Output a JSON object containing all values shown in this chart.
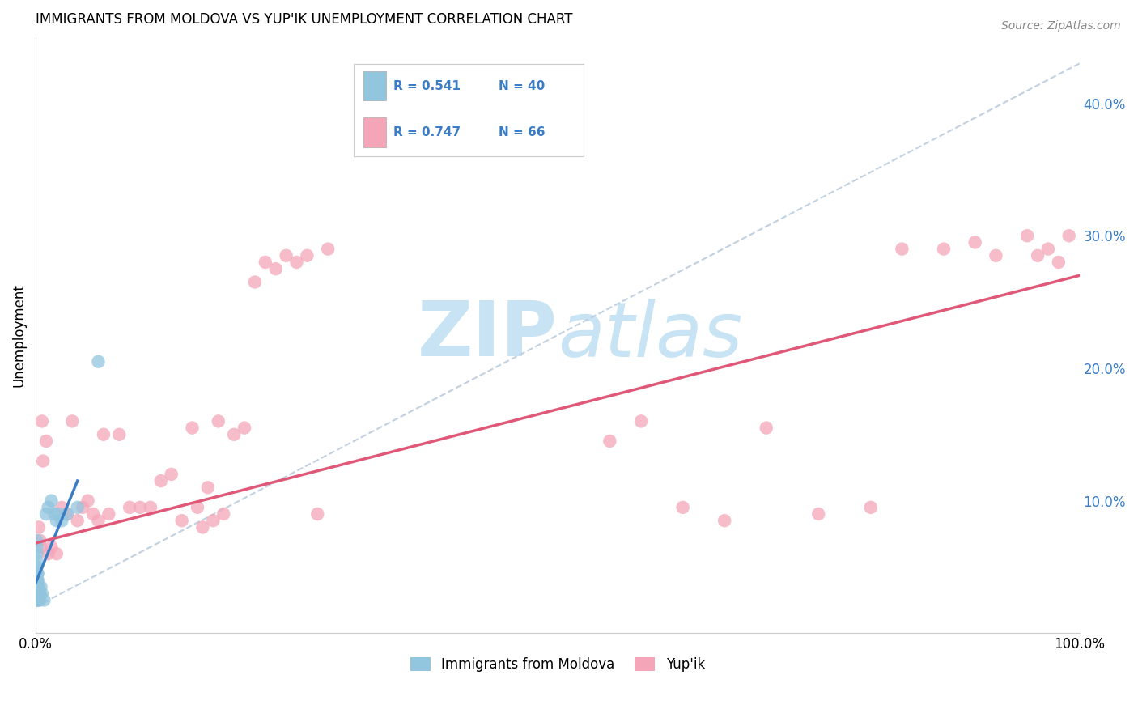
{
  "title": "IMMIGRANTS FROM MOLDOVA VS YUP'IK UNEMPLOYMENT CORRELATION CHART",
  "source": "Source: ZipAtlas.com",
  "ylabel": "Unemployment",
  "legend_blue_r": "R = 0.541",
  "legend_blue_n": "N = 40",
  "legend_pink_r": "R = 0.747",
  "legend_pink_n": "N = 66",
  "blue_scatter_color": "#92C5DE",
  "pink_scatter_color": "#F4A6B8",
  "blue_line_color": "#3A7DC4",
  "pink_line_color": "#E05878",
  "dashed_line_color": "#BBCCDD",
  "watermark_color": "#C8E4F4",
  "label_color": "#3A7DC4",
  "background_color": "#FFFFFF",
  "grid_color": "#DDDDDD",
  "blue_x": [
    0.0005,
    0.0006,
    0.0007,
    0.0008,
    0.0009,
    0.001,
    0.001,
    0.001,
    0.001,
    0.001,
    0.001,
    0.0012,
    0.0013,
    0.0014,
    0.0015,
    0.0015,
    0.0016,
    0.0017,
    0.0018,
    0.002,
    0.002,
    0.002,
    0.002,
    0.003,
    0.003,
    0.004,
    0.004,
    0.005,
    0.006,
    0.008,
    0.01,
    0.012,
    0.015,
    0.018,
    0.02,
    0.022,
    0.025,
    0.03,
    0.04,
    0.06
  ],
  "blue_y": [
    0.03,
    0.035,
    0.04,
    0.025,
    0.045,
    0.055,
    0.06,
    0.065,
    0.07,
    0.05,
    0.035,
    0.04,
    0.03,
    0.035,
    0.04,
    0.045,
    0.03,
    0.03,
    0.035,
    0.025,
    0.03,
    0.04,
    0.045,
    0.03,
    0.035,
    0.025,
    0.03,
    0.035,
    0.03,
    0.025,
    0.09,
    0.095,
    0.1,
    0.09,
    0.085,
    0.09,
    0.085,
    0.09,
    0.095,
    0.205
  ],
  "pink_x": [
    0.001,
    0.001,
    0.001,
    0.002,
    0.002,
    0.003,
    0.003,
    0.004,
    0.004,
    0.005,
    0.006,
    0.007,
    0.01,
    0.012,
    0.015,
    0.02,
    0.025,
    0.03,
    0.035,
    0.04,
    0.045,
    0.05,
    0.055,
    0.06,
    0.065,
    0.07,
    0.08,
    0.09,
    0.1,
    0.11,
    0.12,
    0.13,
    0.14,
    0.15,
    0.155,
    0.16,
    0.165,
    0.17,
    0.175,
    0.18,
    0.19,
    0.2,
    0.21,
    0.22,
    0.23,
    0.24,
    0.25,
    0.26,
    0.27,
    0.28,
    0.55,
    0.58,
    0.62,
    0.66,
    0.7,
    0.75,
    0.8,
    0.83,
    0.87,
    0.9,
    0.92,
    0.95,
    0.96,
    0.97,
    0.98,
    0.99
  ],
  "pink_y": [
    0.03,
    0.035,
    0.04,
    0.025,
    0.03,
    0.025,
    0.08,
    0.03,
    0.07,
    0.065,
    0.16,
    0.13,
    0.145,
    0.06,
    0.065,
    0.06,
    0.095,
    0.09,
    0.16,
    0.085,
    0.095,
    0.1,
    0.09,
    0.085,
    0.15,
    0.09,
    0.15,
    0.095,
    0.095,
    0.095,
    0.115,
    0.12,
    0.085,
    0.155,
    0.095,
    0.08,
    0.11,
    0.085,
    0.16,
    0.09,
    0.15,
    0.155,
    0.265,
    0.28,
    0.275,
    0.285,
    0.28,
    0.285,
    0.09,
    0.29,
    0.145,
    0.16,
    0.095,
    0.085,
    0.155,
    0.09,
    0.095,
    0.29,
    0.29,
    0.295,
    0.285,
    0.3,
    0.285,
    0.29,
    0.28,
    0.3
  ],
  "xlim": [
    0.0,
    1.0
  ],
  "ylim": [
    0.0,
    0.45
  ],
  "blue_line_x": [
    0.0,
    0.04
  ],
  "blue_line_y": [
    0.038,
    0.115
  ],
  "pink_line_x": [
    0.0,
    1.0
  ],
  "pink_line_y": [
    0.068,
    0.27
  ],
  "dash_line_x": [
    0.0,
    1.0
  ],
  "dash_line_y": [
    0.02,
    0.43
  ]
}
